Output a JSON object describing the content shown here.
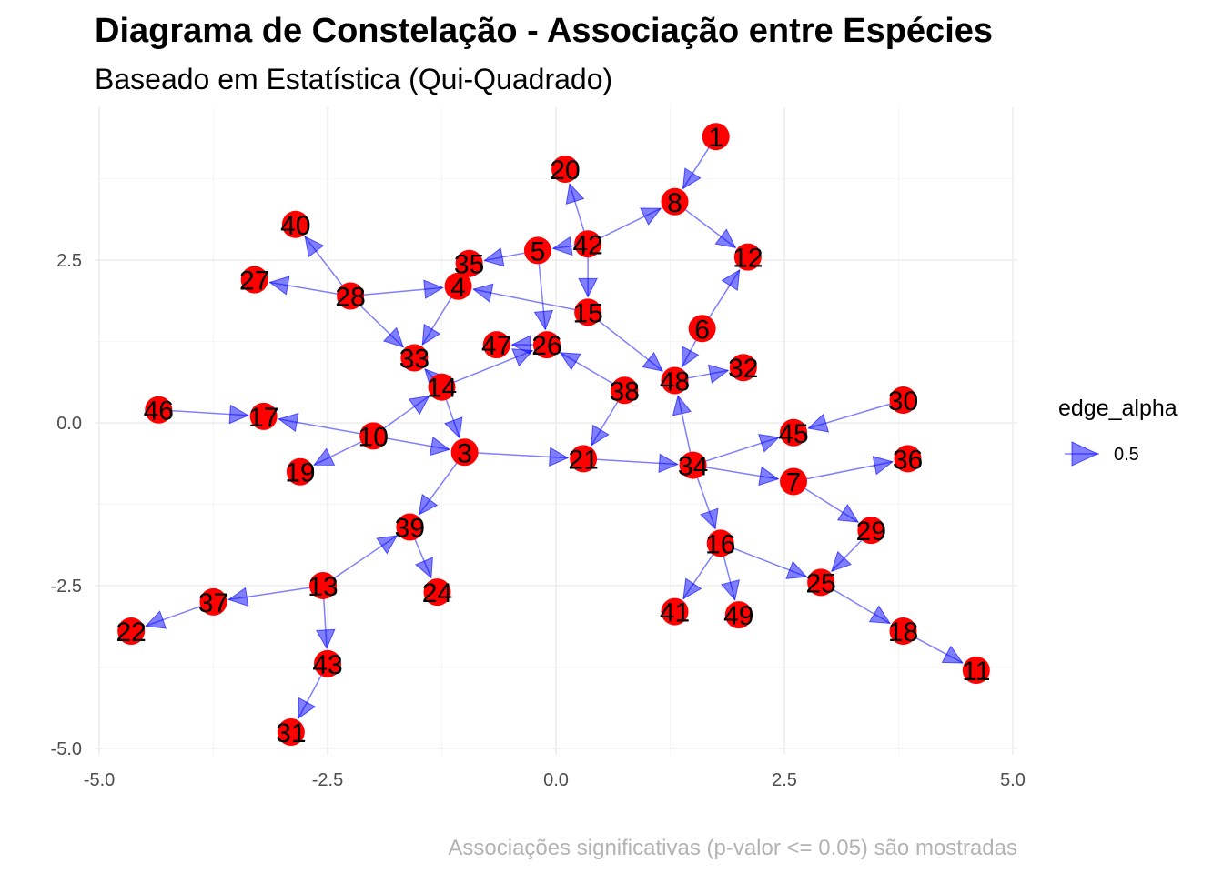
{
  "chart_data": {
    "type": "network",
    "title": "Diagrama de Constelação - Associação entre Espécies",
    "subtitle": "Baseado em Estatística (Qui-Quadrado)",
    "caption": "Associações significativas (p-valor <= 0.05) são mostradas",
    "xlim": [
      -5.05,
      5.05
    ],
    "ylim": [
      -5.1,
      4.85
    ],
    "x_ticks": [
      -5,
      -2.5,
      0,
      2.5,
      5
    ],
    "x_tick_labels": [
      "-5.0",
      "-2.5",
      "0.0",
      "2.5",
      "5.0"
    ],
    "y_ticks": [
      -5,
      -2.5,
      0,
      2.5
    ],
    "y_tick_labels": [
      "-5.0",
      "-2.5",
      "0.0",
      "2.5"
    ],
    "grid": true,
    "node_color": "#ff0000",
    "edge_color": "#0000ff",
    "edge_alpha": 0.5,
    "legend": {
      "title": "edge_alpha",
      "entries": [
        "0.5"
      ],
      "position": "right"
    },
    "nodes": [
      {
        "id": "1",
        "x": 1.75,
        "y": 4.4
      },
      {
        "id": "3",
        "x": -1.0,
        "y": -0.45
      },
      {
        "id": "4",
        "x": -1.07,
        "y": 2.1
      },
      {
        "id": "5",
        "x": -0.2,
        "y": 2.65
      },
      {
        "id": "6",
        "x": 1.6,
        "y": 1.45
      },
      {
        "id": "7",
        "x": 2.6,
        "y": -0.9
      },
      {
        "id": "8",
        "x": 1.3,
        "y": 3.4
      },
      {
        "id": "10",
        "x": -2.0,
        "y": -0.2
      },
      {
        "id": "11",
        "x": 4.6,
        "y": -3.8
      },
      {
        "id": "12",
        "x": 2.1,
        "y": 2.55
      },
      {
        "id": "13",
        "x": -2.55,
        "y": -2.5
      },
      {
        "id": "14",
        "x": -1.25,
        "y": 0.55
      },
      {
        "id": "15",
        "x": 0.35,
        "y": 1.7
      },
      {
        "id": "16",
        "x": 1.8,
        "y": -1.85
      },
      {
        "id": "17",
        "x": -3.2,
        "y": 0.1
      },
      {
        "id": "18",
        "x": 3.8,
        "y": -3.2
      },
      {
        "id": "19",
        "x": -2.8,
        "y": -0.75
      },
      {
        "id": "20",
        "x": 0.1,
        "y": 3.9
      },
      {
        "id": "21",
        "x": 0.3,
        "y": -0.55
      },
      {
        "id": "22",
        "x": -4.65,
        "y": -3.2
      },
      {
        "id": "24",
        "x": -1.3,
        "y": -2.6
      },
      {
        "id": "25",
        "x": 2.9,
        "y": -2.45
      },
      {
        "id": "26",
        "x": -0.1,
        "y": 1.2
      },
      {
        "id": "27",
        "x": -3.3,
        "y": 2.2
      },
      {
        "id": "28",
        "x": -2.25,
        "y": 1.95
      },
      {
        "id": "29",
        "x": 3.45,
        "y": -1.65
      },
      {
        "id": "30",
        "x": 3.8,
        "y": 0.35
      },
      {
        "id": "31",
        "x": -2.9,
        "y": -4.75
      },
      {
        "id": "32",
        "x": 2.05,
        "y": 0.85
      },
      {
        "id": "33",
        "x": -1.55,
        "y": 1.0
      },
      {
        "id": "34",
        "x": 1.5,
        "y": -0.65
      },
      {
        "id": "35",
        "x": -0.95,
        "y": 2.45
      },
      {
        "id": "36",
        "x": 3.85,
        "y": -0.55
      },
      {
        "id": "37",
        "x": -3.75,
        "y": -2.75
      },
      {
        "id": "38",
        "x": 0.75,
        "y": 0.5
      },
      {
        "id": "39",
        "x": -1.6,
        "y": -1.6
      },
      {
        "id": "40",
        "x": -2.85,
        "y": 3.05
      },
      {
        "id": "41",
        "x": 1.3,
        "y": -2.9
      },
      {
        "id": "42",
        "x": 0.35,
        "y": 2.75
      },
      {
        "id": "43",
        "x": -2.5,
        "y": -3.7
      },
      {
        "id": "45",
        "x": 2.6,
        "y": -0.15
      },
      {
        "id": "46",
        "x": -4.35,
        "y": 0.2
      },
      {
        "id": "47",
        "x": -0.65,
        "y": 1.2
      },
      {
        "id": "48",
        "x": 1.3,
        "y": 0.65
      },
      {
        "id": "49",
        "x": 2.0,
        "y": -2.95
      }
    ],
    "edges": [
      [
        "1",
        "8"
      ],
      [
        "8",
        "12"
      ],
      [
        "42",
        "8"
      ],
      [
        "42",
        "20"
      ],
      [
        "42",
        "5"
      ],
      [
        "42",
        "15"
      ],
      [
        "5",
        "35"
      ],
      [
        "5",
        "26"
      ],
      [
        "15",
        "4"
      ],
      [
        "15",
        "48"
      ],
      [
        "28",
        "4"
      ],
      [
        "28",
        "27"
      ],
      [
        "28",
        "40"
      ],
      [
        "28",
        "33"
      ],
      [
        "4",
        "33"
      ],
      [
        "14",
        "33"
      ],
      [
        "14",
        "26"
      ],
      [
        "26",
        "47"
      ],
      [
        "14",
        "3"
      ],
      [
        "10",
        "14"
      ],
      [
        "10",
        "17"
      ],
      [
        "46",
        "17"
      ],
      [
        "10",
        "19"
      ],
      [
        "10",
        "3"
      ],
      [
        "3",
        "39"
      ],
      [
        "3",
        "21"
      ],
      [
        "38",
        "26"
      ],
      [
        "38",
        "21"
      ],
      [
        "6",
        "12"
      ],
      [
        "6",
        "48"
      ],
      [
        "48",
        "32"
      ],
      [
        "34",
        "48"
      ],
      [
        "21",
        "34"
      ],
      [
        "34",
        "45"
      ],
      [
        "30",
        "45"
      ],
      [
        "34",
        "7"
      ],
      [
        "7",
        "36"
      ],
      [
        "7",
        "29"
      ],
      [
        "29",
        "25"
      ],
      [
        "34",
        "16"
      ],
      [
        "16",
        "25"
      ],
      [
        "16",
        "41"
      ],
      [
        "16",
        "49"
      ],
      [
        "25",
        "18"
      ],
      [
        "18",
        "11"
      ],
      [
        "39",
        "24"
      ],
      [
        "13",
        "39"
      ],
      [
        "13",
        "37"
      ],
      [
        "37",
        "22"
      ],
      [
        "13",
        "43"
      ],
      [
        "43",
        "31"
      ]
    ]
  }
}
